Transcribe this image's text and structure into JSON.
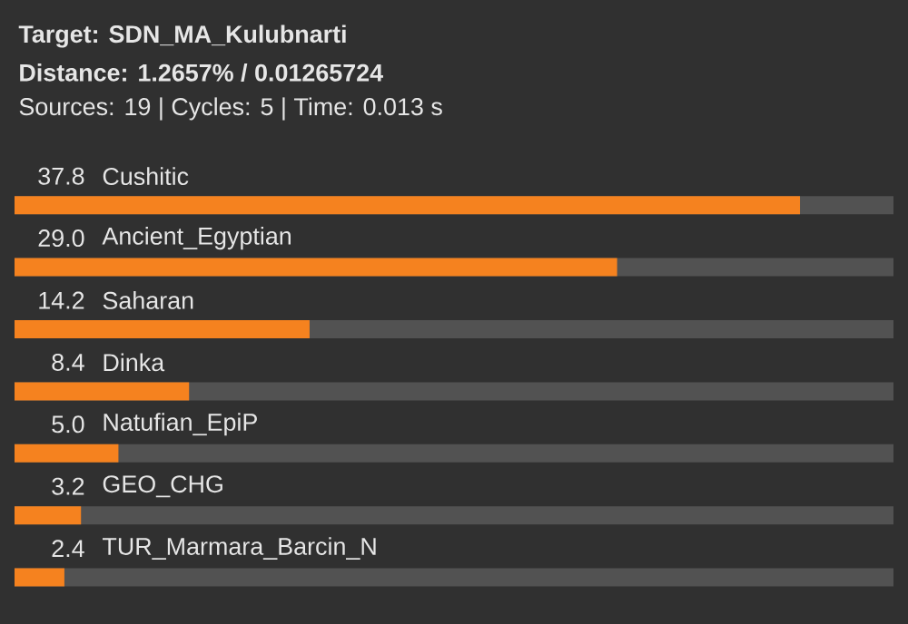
{
  "chart_data": {
    "type": "bar",
    "orientation": "horizontal",
    "title": "Target: SDN_MA_Kulubnarti",
    "subtitle": "Distance: 1.2657% / 0.01265724",
    "annotations": [
      "Sources: 19 | Cycles: 5 | Time: 0.013 s"
    ],
    "categories": [
      "Cushitic",
      "Ancient_Egyptian",
      "Saharan",
      "Dinka",
      "Natufian_EpiP",
      "GEO_CHG",
      "TUR_Marmara_Barcin_N"
    ],
    "values": [
      37.8,
      29.0,
      14.2,
      8.4,
      5.0,
      3.2,
      2.4
    ],
    "value_labels": [
      "37.8",
      "29.0",
      "14.2",
      "8.4",
      "5.0",
      "3.2",
      "2.4"
    ],
    "color": "#f5821f",
    "xlim": [
      0,
      42.3
    ]
  }
}
